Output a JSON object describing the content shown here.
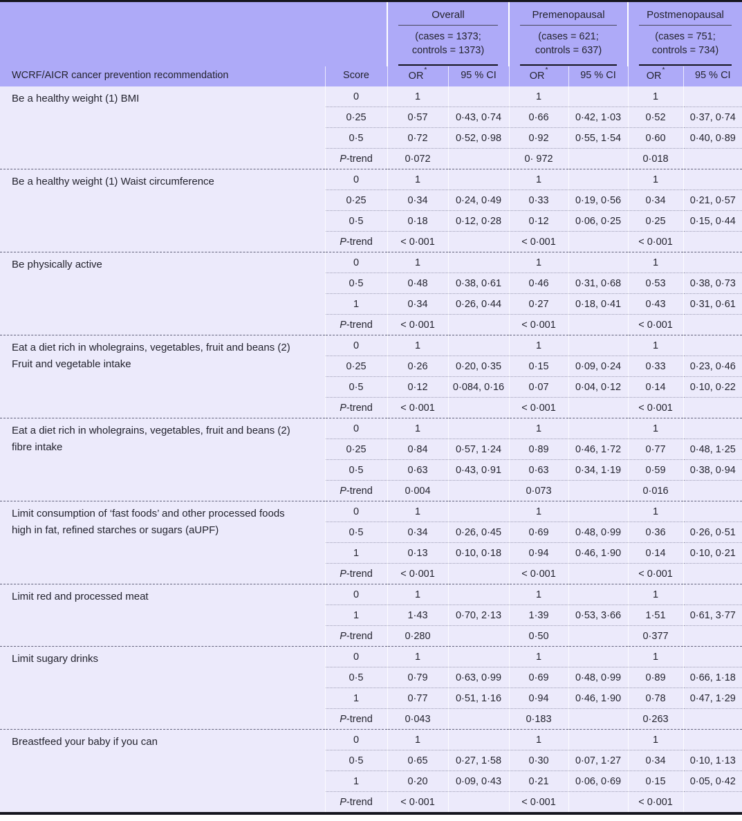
{
  "colors": {
    "header_bg": "#aeaaf8",
    "body_bg": "#eceafb",
    "rule_dark": "#16161f",
    "text": "#23232e"
  },
  "table": {
    "title_col_header": "WCRF/AICR cancer prevention recommendation",
    "score_header": "Score",
    "or_header": "OR",
    "or_sup": "*",
    "ci_header": "95 % CI",
    "groups": [
      {
        "name": "Overall",
        "cases_line1": "(cases = 1373;",
        "cases_line2": "controls = 1373)"
      },
      {
        "name": "Premenopausal",
        "cases_line1": "(cases = 621;",
        "cases_line2": "controls = 637)"
      },
      {
        "name": "Postmenopausal",
        "cases_line1": "(cases = 751;",
        "cases_line2": "controls = 734)"
      }
    ],
    "sections": [
      {
        "label": "Be a healthy weight (1) BMI",
        "rows": [
          {
            "score": "0",
            "or1": "1",
            "ci1": "",
            "or2": "1",
            "ci2": "",
            "or3": "1",
            "ci3": ""
          },
          {
            "score": "0·25",
            "or1": "0·57",
            "ci1": "0·43, 0·74",
            "or2": "0·66",
            "ci2": "0·42, 1·03",
            "or3": "0·52",
            "ci3": "0·37, 0·74"
          },
          {
            "score": "0·5",
            "or1": "0·72",
            "ci1": "0·52, 0·98",
            "or2": "0·92",
            "ci2": "0·55, 1·54",
            "or3": "0·60",
            "ci3": "0·40, 0·89"
          },
          {
            "score": "P-trend",
            "is_ptrend": true,
            "or1": "0·072",
            "ci1": "",
            "or2": "0· 972",
            "ci2": "",
            "or3": "0·018",
            "ci3": ""
          }
        ]
      },
      {
        "label": "Be a healthy weight (1) Waist circumference",
        "rows": [
          {
            "score": "0",
            "or1": "1",
            "ci1": "",
            "or2": "1",
            "ci2": "",
            "or3": "1",
            "ci3": ""
          },
          {
            "score": "0·25",
            "or1": "0·34",
            "ci1": "0·24, 0·49",
            "or2": "0·33",
            "ci2": "0·19, 0·56",
            "or3": "0·34",
            "ci3": "0·21, 0·57"
          },
          {
            "score": "0·5",
            "or1": "0·18",
            "ci1": "0·12, 0·28",
            "or2": "0·12",
            "ci2": "0·06, 0·25",
            "or3": "0·25",
            "ci3": "0·15, 0·44"
          },
          {
            "score": "P-trend",
            "is_ptrend": true,
            "or1": "< 0·001",
            "ci1": "",
            "or2": "< 0·001",
            "ci2": "",
            "or3": "< 0·001",
            "ci3": ""
          }
        ]
      },
      {
        "label": "Be physically active",
        "rows": [
          {
            "score": "0",
            "or1": "1",
            "ci1": "",
            "or2": "1",
            "ci2": "",
            "or3": "1",
            "ci3": ""
          },
          {
            "score": "0·5",
            "or1": "0·48",
            "ci1": "0·38, 0·61",
            "or2": "0·46",
            "ci2": "0·31, 0·68",
            "or3": "0·53",
            "ci3": "0·38, 0·73"
          },
          {
            "score": "1",
            "or1": "0·34",
            "ci1": "0·26, 0·44",
            "or2": "0·27",
            "ci2": "0·18, 0·41",
            "or3": "0·43",
            "ci3": "0·31, 0·61"
          },
          {
            "score": "P-trend",
            "is_ptrend": true,
            "or1": "< 0·001",
            "ci1": "",
            "or2": "< 0·001",
            "ci2": "",
            "or3": "< 0·001",
            "ci3": ""
          }
        ]
      },
      {
        "label": "Eat a diet rich in wholegrains, vegetables, fruit and beans (2) Fruit and vegetable intake",
        "rows": [
          {
            "score": "0",
            "or1": "1",
            "ci1": "",
            "or2": "1",
            "ci2": "",
            "or3": "1",
            "ci3": ""
          },
          {
            "score": "0·25",
            "or1": "0·26",
            "ci1": "0·20, 0·35",
            "or2": "0·15",
            "ci2": "0·09, 0·24",
            "or3": "0·33",
            "ci3": "0·23, 0·46"
          },
          {
            "score": "0·5",
            "or1": "0·12",
            "ci1": "0·084, 0·16",
            "or2": "0·07",
            "ci2": "0·04, 0·12",
            "or3": "0·14",
            "ci3": "0·10, 0·22"
          },
          {
            "score": "P-trend",
            "is_ptrend": true,
            "or1": "< 0·001",
            "ci1": "",
            "or2": "< 0·001",
            "ci2": "",
            "or3": "< 0·001",
            "ci3": ""
          }
        ]
      },
      {
        "label": "Eat a diet rich in wholegrains, vegetables, fruit and beans (2) fibre intake",
        "rows": [
          {
            "score": "0",
            "or1": "1",
            "ci1": "",
            "or2": "1",
            "ci2": "",
            "or3": "1",
            "ci3": ""
          },
          {
            "score": "0·25",
            "or1": "0·84",
            "ci1": "0·57, 1·24",
            "or2": "0·89",
            "ci2": "0·46, 1·72",
            "or3": "0·77",
            "ci3": "0·48, 1·25"
          },
          {
            "score": "0·5",
            "or1": "0·63",
            "ci1": "0·43, 0·91",
            "or2": "0·63",
            "ci2": "0·34, 1·19",
            "or3": "0·59",
            "ci3": "0·38, 0·94"
          },
          {
            "score": "P-trend",
            "is_ptrend": true,
            "or1": "0·004",
            "ci1": "",
            "or2": "0·073",
            "ci2": "",
            "or3": "0·016",
            "ci3": ""
          }
        ]
      },
      {
        "label": "Limit consumption of ‘fast foods’ and other processed foods high in fat, refined starches or sugars (aUPF)",
        "rows": [
          {
            "score": "0",
            "or1": "1",
            "ci1": "",
            "or2": "1",
            "ci2": "",
            "or3": "1",
            "ci3": ""
          },
          {
            "score": "0·5",
            "or1": "0·34",
            "ci1": "0·26, 0·45",
            "or2": "0·69",
            "ci2": "0·48, 0·99",
            "or3": "0·36",
            "ci3": "0·26, 0·51"
          },
          {
            "score": "1",
            "or1": "0·13",
            "ci1": "0·10, 0·18",
            "or2": "0·94",
            "ci2": "0·46, 1·90",
            "or3": "0·14",
            "ci3": "0·10, 0·21"
          },
          {
            "score": "P-trend",
            "is_ptrend": true,
            "or1": "< 0·001",
            "ci1": "",
            "or2": "< 0·001",
            "ci2": "",
            "or3": "< 0·001",
            "ci3": ""
          }
        ]
      },
      {
        "label": "Limit red and processed meat",
        "rows": [
          {
            "score": "0",
            "or1": "1",
            "ci1": "",
            "or2": "1",
            "ci2": "",
            "or3": "1",
            "ci3": ""
          },
          {
            "score": "1",
            "or1": "1·43",
            "ci1": "0·70, 2·13",
            "or2": "1·39",
            "ci2": "0·53, 3·66",
            "or3": "1·51",
            "ci3": "0·61, 3·77"
          },
          {
            "score": "P-trend",
            "is_ptrend": true,
            "or1": "0·280",
            "ci1": "",
            "or2": "0·50",
            "ci2": "",
            "or3": "0·377",
            "ci3": ""
          }
        ]
      },
      {
        "label": "Limit sugary drinks",
        "rows": [
          {
            "score": "0",
            "or1": "1",
            "ci1": "",
            "or2": "1",
            "ci2": "",
            "or3": "1",
            "ci3": ""
          },
          {
            "score": "0·5",
            "or1": "0·79",
            "ci1": "0·63, 0·99",
            "or2": "0·69",
            "ci2": "0·48, 0·99",
            "or3": "0·89",
            "ci3": "0·66, 1·18"
          },
          {
            "score": "1",
            "or1": "0·77",
            "ci1": "0·51, 1·16",
            "or2": "0·94",
            "ci2": "0·46, 1·90",
            "or3": "0·78",
            "ci3": "0·47, 1·29"
          },
          {
            "score": "P-trend",
            "is_ptrend": true,
            "or1": "0·043",
            "ci1": "",
            "or2": "0·183",
            "ci2": "",
            "or3": "0·263",
            "ci3": ""
          }
        ]
      },
      {
        "label": "Breastfeed your baby if you can",
        "rows": [
          {
            "score": "0",
            "or1": "1",
            "ci1": "",
            "or2": "1",
            "ci2": "",
            "or3": "1",
            "ci3": ""
          },
          {
            "score": "0·5",
            "or1": "0·65",
            "ci1": "0·27, 1·58",
            "or2": "0·30",
            "ci2": "0·07, 1·27",
            "or3": "0·34",
            "ci3": "0·10, 1·13"
          },
          {
            "score": "1",
            "or1": "0·20",
            "ci1": "0·09, 0·43",
            "or2": "0·21",
            "ci2": "0·06, 0·69",
            "or3": "0·15",
            "ci3": "0·05, 0·42"
          },
          {
            "score": "P-trend",
            "is_ptrend": true,
            "or1": "< 0·001",
            "ci1": "",
            "or2": "< 0·001",
            "ci2": "",
            "or3": "< 0·001",
            "ci3": ""
          }
        ]
      }
    ]
  }
}
